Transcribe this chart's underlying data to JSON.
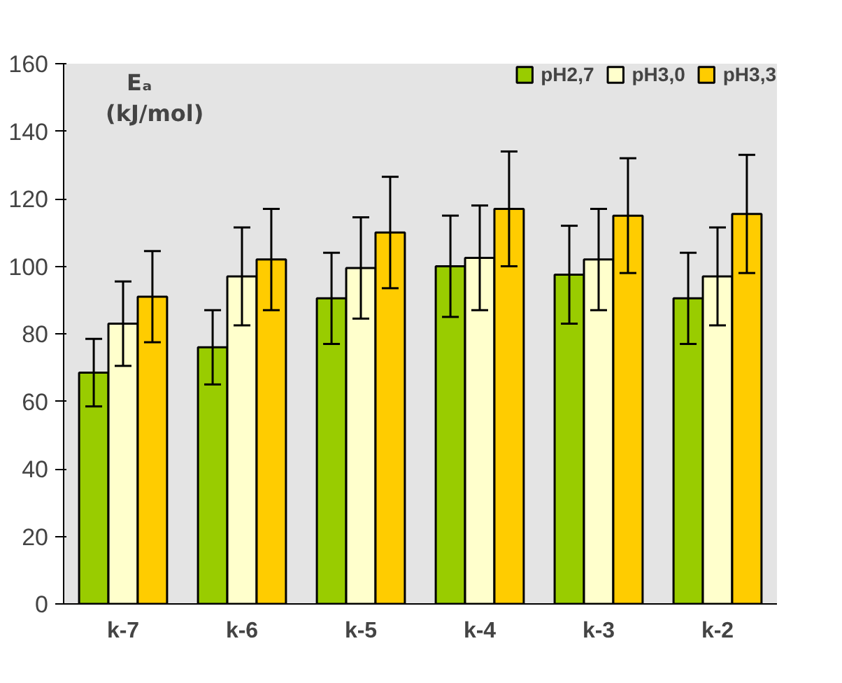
{
  "chart_data": {
    "type": "bar",
    "ylabel": "Eₐ\n(kJ/mol)",
    "categories": [
      "k-7",
      "k-6",
      "k-5",
      "k-4",
      "k-3",
      "k-2"
    ],
    "series": [
      {
        "name": "pH2,7",
        "color": "#99cc00",
        "values": [
          68.5,
          76,
          90.5,
          100,
          97.5,
          90.5
        ],
        "errors": [
          10,
          11,
          13.5,
          15,
          14.5,
          13.5
        ]
      },
      {
        "name": "pH3,0",
        "color": "#ffffcc",
        "values": [
          83,
          97,
          99.5,
          102.5,
          102,
          97
        ],
        "errors": [
          12.5,
          14.5,
          15,
          15.5,
          15,
          14.5
        ]
      },
      {
        "name": "pH3,3",
        "color": "#ffcc00",
        "values": [
          91,
          102,
          110,
          117,
          115,
          115.5
        ],
        "errors": [
          13.5,
          15,
          16.5,
          17,
          17,
          17.5
        ]
      }
    ],
    "ylim": [
      0,
      160
    ],
    "yticks": [
      0,
      20,
      40,
      60,
      80,
      100,
      120,
      140,
      160
    ],
    "legend": "top right"
  }
}
